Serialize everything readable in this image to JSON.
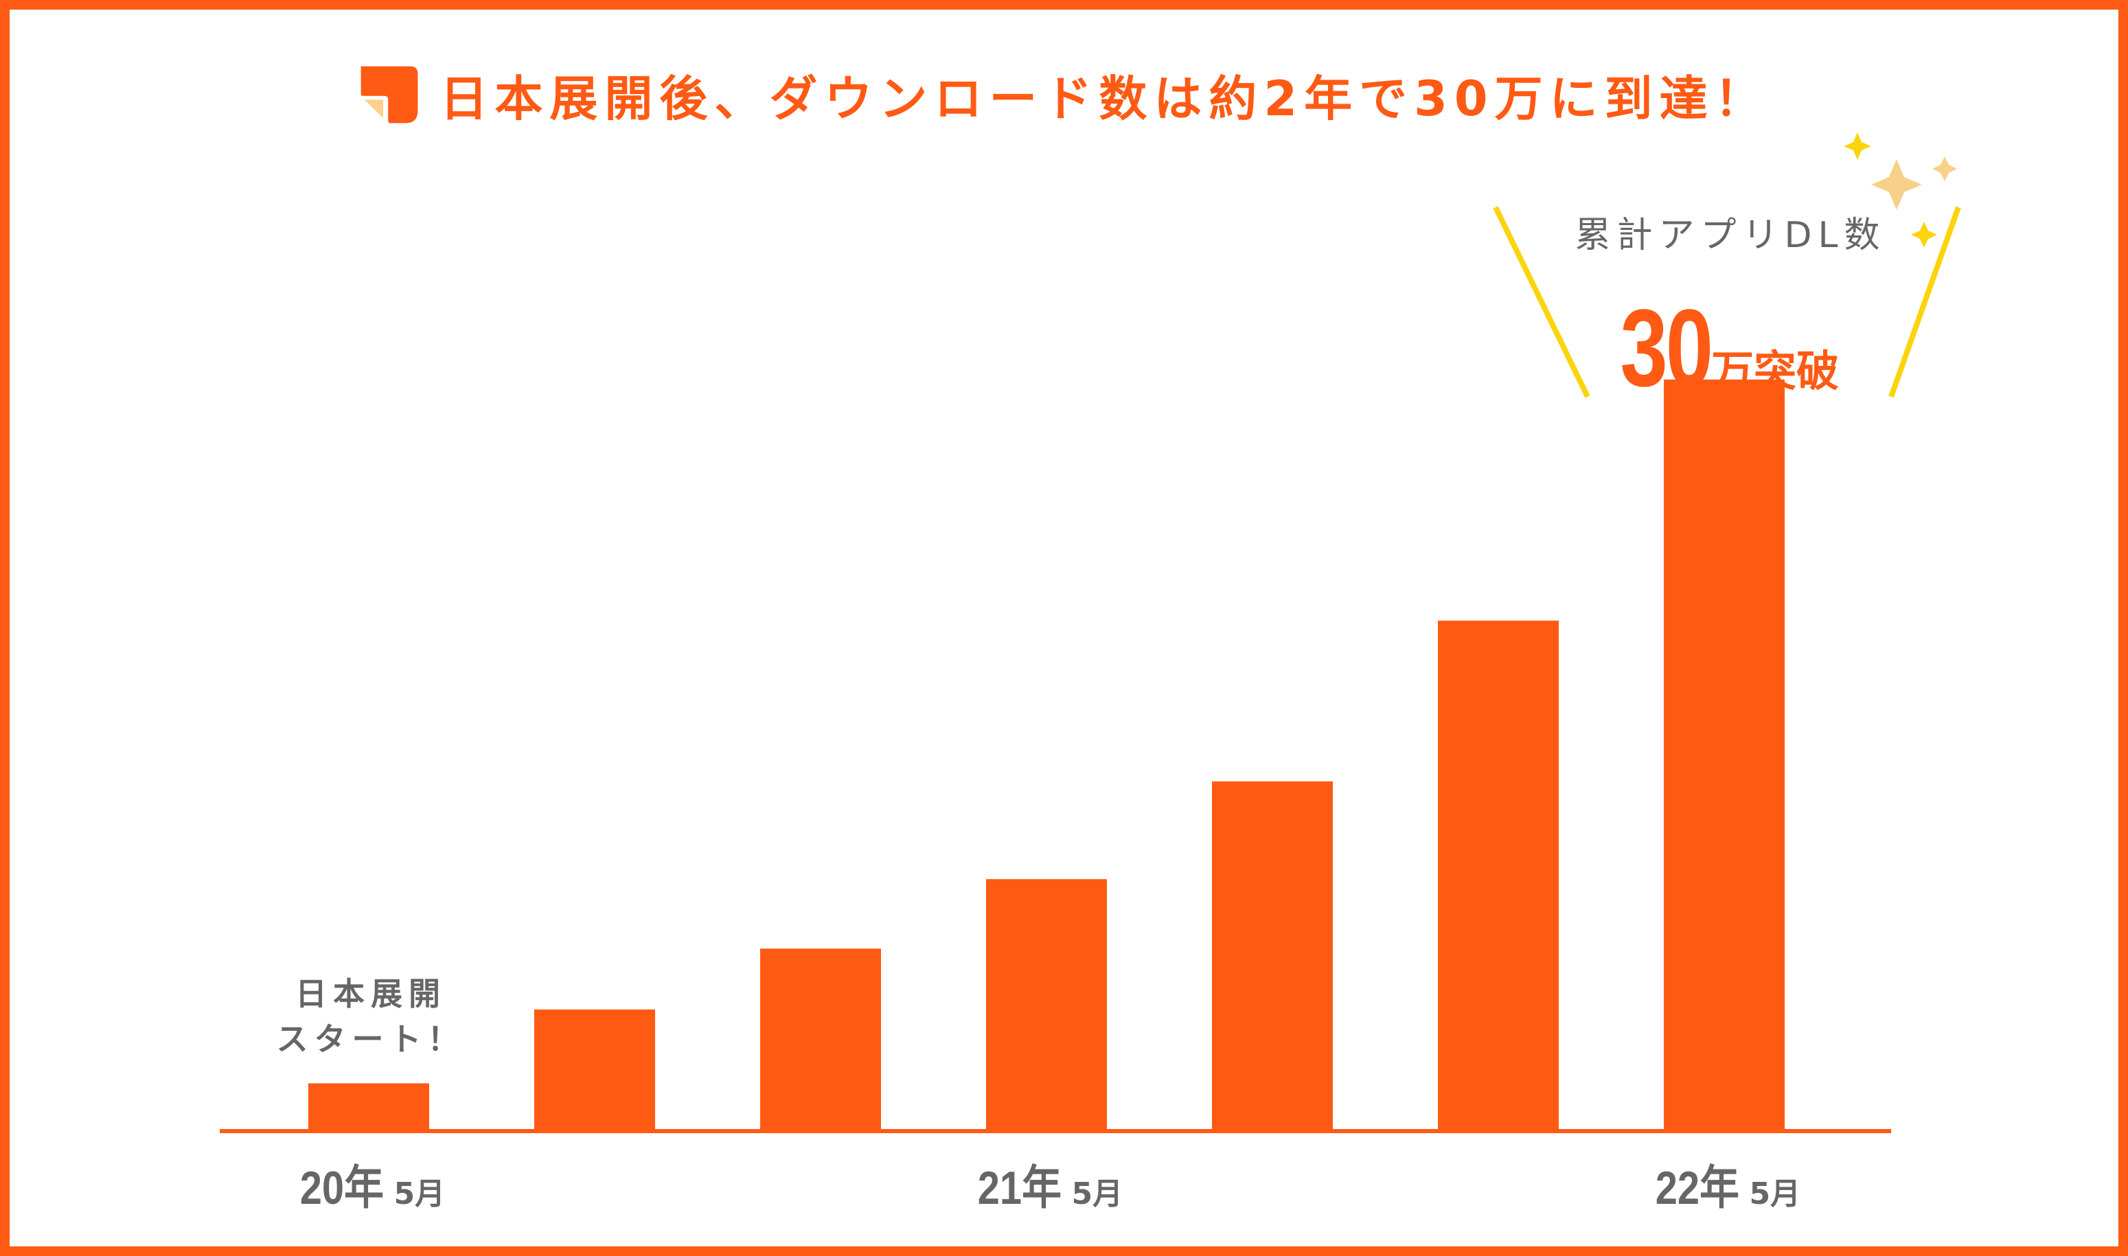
{
  "title": "日本展開後、ダウンロード数は約2年で30万に到達！",
  "colors": {
    "accent": "#ff5a14",
    "text_gray": "#666666",
    "rays": "#fbd40e",
    "sparkle_light": "#f8d08a",
    "icon_corner": "#ffd08a"
  },
  "annotation": {
    "label": "累計アプリDL数",
    "value_number": "30",
    "value_unit": "万突破"
  },
  "start_note": {
    "line1": "日本展開",
    "line2": "スタート！"
  },
  "chart_data": {
    "type": "bar",
    "categories": [
      "20年 5月",
      "",
      "",
      "21年 5月",
      "",
      "",
      "22年 5月"
    ],
    "tick_labels": [
      {
        "index": 0,
        "year": "20年",
        "month": "5月"
      },
      {
        "index": 3,
        "year": "21年",
        "month": "5月"
      },
      {
        "index": 6,
        "year": "22年",
        "month": "5月"
      }
    ],
    "values": [
      2.2,
      5.6,
      8.4,
      11.6,
      16.1,
      23.5,
      34.6
    ],
    "ylim": [
      0,
      36.5
    ],
    "grid": false,
    "title": "",
    "xlabel": "",
    "ylabel": ""
  }
}
